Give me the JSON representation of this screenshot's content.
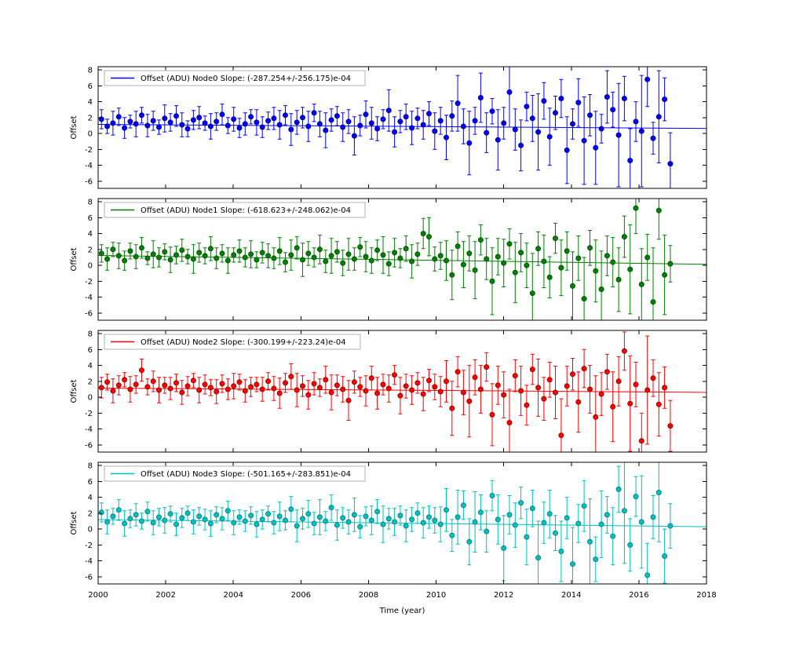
{
  "figure": {
    "background": "#ffffff",
    "xlabel": "Time (year)",
    "ylabel": "Offset",
    "legend_location": "upper left"
  },
  "chart_data": {
    "type": "scatter",
    "title": "",
    "xlabel": "Time (year)",
    "ylabel": "Offset",
    "xlim": [
      2000,
      2018
    ],
    "ylim": [
      -6.9,
      8.4
    ],
    "x_ticks": [
      2000,
      2002,
      2004,
      2006,
      2008,
      2010,
      2012,
      2014,
      2016,
      2018
    ],
    "y_ticks": [
      -6,
      -4,
      -2,
      0,
      2,
      4,
      6,
      8
    ],
    "grid": false,
    "legend_position": "upper left",
    "x": [
      2000.1,
      2000.27,
      2000.44,
      2000.61,
      2000.78,
      2000.95,
      2001.12,
      2001.29,
      2001.46,
      2001.63,
      2001.8,
      2001.97,
      2002.14,
      2002.31,
      2002.48,
      2002.65,
      2002.82,
      2002.99,
      2003.16,
      2003.33,
      2003.5,
      2003.67,
      2003.84,
      2004.01,
      2004.18,
      2004.35,
      2004.52,
      2004.69,
      2004.86,
      2005.03,
      2005.2,
      2005.37,
      2005.54,
      2005.71,
      2005.88,
      2006.05,
      2006.22,
      2006.39,
      2006.56,
      2006.73,
      2006.9,
      2007.07,
      2007.24,
      2007.41,
      2007.58,
      2007.75,
      2007.92,
      2008.09,
      2008.26,
      2008.43,
      2008.6,
      2008.77,
      2008.94,
      2009.11,
      2009.28,
      2009.45,
      2009.62,
      2009.79,
      2009.96,
      2010.13,
      2010.3,
      2010.47,
      2010.64,
      2010.81,
      2010.98,
      2011.15,
      2011.32,
      2011.49,
      2011.66,
      2011.83,
      2012.0,
      2012.17,
      2012.34,
      2012.51,
      2012.68,
      2012.85,
      2013.02,
      2013.19,
      2013.36,
      2013.53,
      2013.7,
      2013.87,
      2014.04,
      2014.21,
      2014.38,
      2014.55,
      2014.72,
      2014.89,
      2015.06,
      2015.23,
      2015.4,
      2015.57,
      2015.74,
      2015.91,
      2016.08,
      2016.25,
      2016.42,
      2016.59,
      2016.76,
      2016.93
    ],
    "series": [
      {
        "name": "Node0",
        "color": "#0000ff",
        "edge": "#00008b",
        "legend": "Offset (ADU) Node0 Slope: (-287.254+/-256.175)e-04",
        "slope_e04": -287.254,
        "slope_err_e04": 256.175,
        "fit": {
          "y_at_2000": 1.15,
          "slope_per_year": -0.0287254
        },
        "y": [
          1.8,
          0.9,
          1.3,
          2.1,
          0.7,
          1.5,
          1.2,
          2.3,
          1.0,
          1.6,
          0.8,
          1.9,
          1.4,
          2.2,
          1.1,
          0.6,
          1.7,
          2.0,
          1.3,
          0.9,
          1.5,
          2.4,
          1.0,
          1.8,
          0.7,
          1.2,
          2.1,
          1.4,
          0.8,
          1.6,
          1.9,
          1.1,
          2.3,
          0.5,
          1.4,
          2.0,
          0.9,
          2.6,
          1.2,
          0.4,
          1.7,
          2.2,
          0.8,
          1.5,
          -0.3,
          1.0,
          2.4,
          1.3,
          0.6,
          1.8,
          2.9,
          0.2,
          1.5,
          2.1,
          0.7,
          1.9,
          1.1,
          2.5,
          0.3,
          1.6,
          -0.5,
          2.2,
          3.8,
          0.9,
          -1.2,
          1.6,
          4.5,
          0.1,
          2.8,
          -0.8,
          1.3,
          5.2,
          0.5,
          -1.5,
          3.4,
          1.9,
          0.2,
          4.1,
          -0.4,
          2.6,
          4.4,
          -2.1,
          1.2,
          3.9,
          -0.9,
          2.3,
          -1.8,
          0.6,
          4.6,
          3.0,
          -0.2,
          4.4,
          -3.4,
          1.5,
          0.3,
          6.8,
          -0.6,
          2.1,
          4.3,
          -3.8
        ],
        "yerr": [
          1.2,
          0.9,
          1.5,
          1.1,
          1.3,
          0.8,
          1.6,
          1.0,
          1.4,
          1.2,
          0.9,
          1.7,
          1.1,
          1.3,
          1.5,
          1.0,
          1.2,
          1.4,
          0.9,
          1.6,
          1.1,
          1.3,
          1.0,
          1.5,
          1.2,
          1.4,
          0.9,
          1.6,
          1.3,
          1.1,
          1.4,
          1.8,
          1.2,
          2.0,
          1.5,
          1.3,
          1.9,
          1.1,
          1.6,
          2.2,
          1.4,
          1.2,
          1.8,
          1.5,
          2.4,
          1.3,
          1.7,
          2.0,
          1.5,
          1.2,
          2.6,
          1.9,
          1.4,
          1.6,
          2.1,
          1.3,
          1.8,
          1.5,
          2.3,
          1.7,
          2.8,
          1.9,
          3.5,
          2.2,
          4.0,
          1.7,
          3.1,
          2.5,
          1.6,
          3.8,
          2.0,
          4.4,
          2.6,
          3.2,
          1.8,
          2.9,
          4.8,
          2.3,
          3.6,
          2.1,
          2.4,
          4.2,
          1.9,
          3.0,
          5.5,
          2.6,
          4.6,
          1.8,
          3.3,
          2.2,
          6.5,
          2.8,
          4.0,
          2.5,
          7.0,
          3.4,
          2.0,
          5.8,
          2.7,
          3.9
        ]
      },
      {
        "name": "Node1",
        "color": "#008000",
        "edge": "#004d00",
        "legend": "Offset (ADU) Node1 Slope: (-618.623+/-248.062)e-04",
        "slope_e04": -618.623,
        "slope_err_e04": 248.062,
        "fit": {
          "y_at_2000": 1.25,
          "slope_per_year": -0.0618623
        },
        "y": [
          1.5,
          0.8,
          2.0,
          1.2,
          0.6,
          1.8,
          1.1,
          2.2,
          0.9,
          1.4,
          1.0,
          1.7,
          0.7,
          1.3,
          1.9,
          1.1,
          0.8,
          1.6,
          1.2,
          2.1,
          0.9,
          1.5,
          0.6,
          1.3,
          1.8,
          1.0,
          1.4,
          0.7,
          1.6,
          1.2,
          0.9,
          1.8,
          0.4,
          1.3,
          2.2,
          0.7,
          1.5,
          1.0,
          2.0,
          0.5,
          1.2,
          1.7,
          0.3,
          1.4,
          0.8,
          2.3,
          1.1,
          0.6,
          1.9,
          1.3,
          0.2,
          1.6,
          0.9,
          2.1,
          0.5,
          1.4,
          4.0,
          3.6,
          0.8,
          1.2,
          0.6,
          -1.2,
          2.4,
          0.1,
          1.5,
          -0.6,
          3.2,
          0.8,
          -2.0,
          1.1,
          0.3,
          2.7,
          -0.9,
          1.6,
          0.0,
          -3.5,
          2.1,
          0.5,
          -1.5,
          3.4,
          -0.3,
          1.8,
          -2.6,
          0.9,
          -4.2,
          2.2,
          -0.7,
          -3.0,
          1.2,
          0.4,
          -1.8,
          3.6,
          -0.5,
          7.2,
          -2.4,
          1.0,
          -4.6,
          6.9,
          -1.2,
          0.2
        ],
        "yerr": [
          1.1,
          1.4,
          0.9,
          1.6,
          1.2,
          1.0,
          1.5,
          1.3,
          0.8,
          1.7,
          1.2,
          1.0,
          1.6,
          1.1,
          1.4,
          0.9,
          1.8,
          1.2,
          1.0,
          1.5,
          1.3,
          1.1,
          1.6,
          0.9,
          1.4,
          1.2,
          1.7,
          1.0,
          1.3,
          1.5,
          1.3,
          1.7,
          1.2,
          1.9,
          1.4,
          2.1,
          1.5,
          1.2,
          1.8,
          1.4,
          2.2,
          1.3,
          1.6,
          2.0,
          1.4,
          1.2,
          1.9,
          1.6,
          1.3,
          2.3,
          1.5,
          1.8,
          1.2,
          1.6,
          2.1,
          1.4,
          1.9,
          2.4,
          1.5,
          1.7,
          2.5,
          3.1,
          1.8,
          2.9,
          2.2,
          3.6,
          1.9,
          2.6,
          4.2,
          2.3,
          3.0,
          1.9,
          3.8,
          2.4,
          2.8,
          5.0,
          2.1,
          3.3,
          2.6,
          1.9,
          3.5,
          2.4,
          4.3,
          2.8,
          5.2,
          2.2,
          3.9,
          4.8,
          2.5,
          3.1,
          4.0,
          2.6,
          5.6,
          3.2,
          4.5,
          2.9,
          6.8,
          3.6,
          5.0,
          2.3
        ]
      },
      {
        "name": "Node2",
        "color": "#ff0000",
        "edge": "#8b0000",
        "legend": "Offset (ADU) Node2 Slope: (-300.199+/-223.24)e-04",
        "slope_e04": -300.199,
        "slope_err_e04": 223.24,
        "fit": {
          "y_at_2000": 1.15,
          "slope_per_year": -0.0300199
        },
        "y": [
          1.2,
          1.9,
          0.8,
          1.5,
          2.2,
          1.0,
          1.6,
          3.4,
          1.3,
          2.0,
          0.9,
          1.5,
          1.1,
          1.8,
          0.6,
          1.4,
          2.1,
          0.9,
          1.6,
          1.2,
          0.7,
          1.7,
          1.0,
          1.4,
          1.9,
          0.8,
          1.3,
          1.6,
          1.0,
          2.0,
          1.1,
          0.5,
          1.8,
          2.6,
          0.9,
          1.4,
          0.3,
          1.7,
          1.2,
          2.2,
          0.6,
          1.5,
          1.0,
          -0.4,
          1.9,
          1.3,
          0.8,
          2.4,
          0.5,
          1.6,
          1.1,
          2.8,
          0.2,
          1.4,
          0.9,
          1.8,
          0.4,
          2.1,
          1.3,
          0.7,
          2.0,
          -1.4,
          3.2,
          0.6,
          -0.5,
          2.5,
          1.0,
          3.8,
          -2.2,
          1.5,
          0.3,
          -3.2,
          2.7,
          0.8,
          -1.0,
          3.5,
          1.2,
          -0.2,
          2.2,
          0.6,
          -4.8,
          1.4,
          2.9,
          -0.6,
          3.6,
          1.0,
          -2.5,
          0.4,
          3.2,
          -1.2,
          2.0,
          5.8,
          -0.8,
          1.6,
          -5.5,
          0.9,
          2.4,
          -0.9,
          1.2,
          -3.6
        ],
        "yerr": [
          1.3,
          1.0,
          1.5,
          1.2,
          0.9,
          1.6,
          1.1,
          1.4,
          1.0,
          1.3,
          1.6,
          1.0,
          1.4,
          1.1,
          1.5,
          1.2,
          0.9,
          1.6,
          1.2,
          1.0,
          1.5,
          1.1,
          1.3,
          1.6,
          1.0,
          1.4,
          1.2,
          0.9,
          1.5,
          1.1,
          1.5,
          1.9,
          1.2,
          1.6,
          2.1,
          1.3,
          1.8,
          1.4,
          1.1,
          1.7,
          2.2,
          1.3,
          1.6,
          2.5,
          1.4,
          1.2,
          1.9,
          1.5,
          2.0,
          1.3,
          1.7,
          1.2,
          2.3,
          1.5,
          1.8,
          1.3,
          2.1,
          1.4,
          1.6,
          1.9,
          2.6,
          3.4,
          1.9,
          2.8,
          4.5,
          2.2,
          3.0,
          1.8,
          3.9,
          2.4,
          2.9,
          4.2,
          2.0,
          3.1,
          2.5,
          1.9,
          3.6,
          2.7,
          2.2,
          3.3,
          4.6,
          2.5,
          2.0,
          3.8,
          2.4,
          3.0,
          5.2,
          2.7,
          2.2,
          4.4,
          3.1,
          2.4,
          6.0,
          2.8,
          3.5,
          6.8,
          2.3,
          4.0,
          2.6,
          3.2
        ]
      },
      {
        "name": "Node3",
        "color": "#00bfbf",
        "edge": "#007d7d",
        "legend": "Offset (ADU) Node3 Slope: (-501.165+/-283.851)e-04",
        "slope_e04": -501.165,
        "slope_err_e04": 283.851,
        "fit": {
          "y_at_2000": 1.2,
          "slope_per_year": -0.0501165
        },
        "y": [
          2.1,
          0.9,
          1.6,
          2.4,
          0.7,
          1.3,
          1.8,
          1.0,
          2.2,
          0.8,
          1.5,
          1.1,
          1.9,
          0.6,
          1.4,
          2.0,
          0.9,
          1.6,
          1.2,
          0.7,
          1.8,
          1.3,
          2.3,
          0.8,
          1.5,
          1.0,
          1.7,
          0.6,
          1.2,
          1.9,
          0.8,
          1.6,
          1.1,
          2.5,
          0.4,
          1.3,
          1.9,
          0.7,
          1.5,
          1.0,
          2.7,
          0.5,
          1.4,
          0.9,
          1.8,
          0.3,
          1.6,
          1.1,
          2.2,
          0.6,
          1.3,
          0.9,
          1.7,
          0.4,
          1.2,
          2.0,
          0.8,
          1.5,
          1.1,
          0.6,
          2.4,
          -0.8,
          1.5,
          3.0,
          -1.6,
          0.9,
          2.1,
          -0.3,
          4.2,
          1.2,
          -2.4,
          1.8,
          0.5,
          3.3,
          -1.0,
          2.6,
          -3.6,
          0.8,
          1.9,
          -0.5,
          -2.8,
          1.4,
          -4.4,
          0.7,
          2.9,
          -1.6,
          -3.8,
          0.6,
          1.8,
          -0.9,
          5.0,
          2.3,
          -2.0,
          4.1,
          0.9,
          -5.8,
          1.5,
          4.6,
          -3.4,
          0.4
        ],
        "yerr": [
          1.2,
          1.5,
          1.0,
          1.3,
          1.6,
          1.1,
          1.4,
          1.0,
          1.2,
          1.5,
          1.1,
          1.6,
          1.0,
          1.4,
          1.2,
          0.9,
          1.5,
          1.1,
          1.3,
          1.6,
          1.0,
          1.4,
          1.2,
          1.5,
          0.9,
          1.3,
          1.1,
          1.6,
          1.2,
          1.0,
          1.4,
          1.8,
          1.2,
          1.6,
          2.0,
          1.3,
          1.7,
          1.4,
          2.2,
          1.2,
          1.6,
          1.9,
          1.3,
          1.5,
          2.1,
          1.4,
          1.2,
          1.8,
          1.5,
          2.3,
          1.3,
          1.7,
          1.2,
          2.0,
          1.5,
          1.3,
          1.9,
          1.4,
          1.6,
          2.2,
          2.7,
          2.0,
          3.4,
          1.8,
          2.9,
          3.8,
          2.2,
          2.6,
          1.9,
          3.1,
          4.1,
          2.4,
          2.8,
          2.0,
          3.5,
          2.3,
          4.6,
          2.6,
          3.0,
          2.2,
          3.8,
          2.6,
          4.6,
          2.4,
          3.2,
          5.4,
          2.8,
          4.2,
          2.3,
          3.6,
          2.9,
          6.6,
          3.3,
          2.5,
          5.8,
          4.0,
          2.7,
          6.2,
          3.4,
          2.8
        ]
      }
    ]
  }
}
